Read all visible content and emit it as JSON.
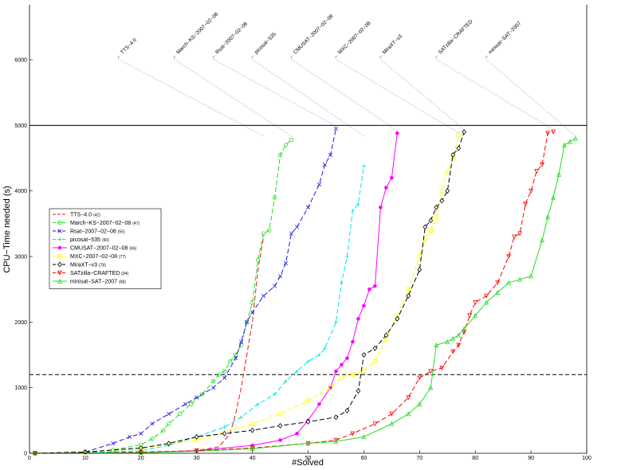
{
  "chart_data": {
    "type": "line",
    "xlabel": "#Solved",
    "ylabel": "CPU−Time needed (s)",
    "xlim": [
      0,
      100
    ],
    "ylim": [
      0,
      6000
    ],
    "xticks": [
      0,
      10,
      20,
      30,
      40,
      50,
      60,
      70,
      80,
      90,
      100
    ],
    "yticks": [
      0,
      1000,
      2000,
      3000,
      4000,
      5000,
      6000
    ],
    "timeout_line": 5000,
    "dashed_reference_line": 1200,
    "legend_position": "left",
    "series": [
      {
        "name": "TTS−4.0",
        "count": "(42)",
        "color": "#e41a1c",
        "dash": "6,3",
        "marker": "none",
        "points": [
          [
            1,
            0
          ],
          [
            10,
            10
          ],
          [
            20,
            20
          ],
          [
            30,
            40
          ],
          [
            34,
            100
          ],
          [
            36,
            300
          ],
          [
            37,
            600
          ],
          [
            38,
            1000
          ],
          [
            39,
            1500
          ],
          [
            40,
            2000
          ],
          [
            41,
            2800
          ],
          [
            42,
            3300
          ]
        ],
        "label_x": 5
      },
      {
        "name": "March−KS−2007−02−08",
        "count": "(47)",
        "color": "#22dd22",
        "dash": "6,3",
        "marker": "circle",
        "points": [
          [
            1,
            0
          ],
          [
            10,
            20
          ],
          [
            15,
            50
          ],
          [
            20,
            130
          ],
          [
            22,
            220
          ],
          [
            24,
            350
          ],
          [
            25,
            450
          ],
          [
            27,
            600
          ],
          [
            29,
            750
          ],
          [
            31,
            900
          ],
          [
            33,
            1100
          ],
          [
            34,
            1200
          ],
          [
            35,
            1250
          ],
          [
            36,
            1400
          ],
          [
            37,
            1500
          ],
          [
            38,
            1650
          ],
          [
            39,
            2000
          ],
          [
            40,
            2300
          ],
          [
            41,
            2950
          ],
          [
            42,
            3350
          ],
          [
            43,
            3400
          ],
          [
            44,
            3900
          ],
          [
            45,
            4550
          ],
          [
            46,
            4700
          ],
          [
            47,
            4780
          ]
        ],
        "label_x": 15
      },
      {
        "name": "Rsat−2007−02−08",
        "count": "(55)",
        "color": "#1a1add",
        "dash": "6,3",
        "marker": "x",
        "points": [
          [
            1,
            0
          ],
          [
            10,
            20
          ],
          [
            15,
            150
          ],
          [
            18,
            250
          ],
          [
            20,
            300
          ],
          [
            22,
            450
          ],
          [
            25,
            600
          ],
          [
            28,
            750
          ],
          [
            30,
            850
          ],
          [
            33,
            1000
          ],
          [
            35,
            1150
          ],
          [
            37,
            1450
          ],
          [
            38,
            1700
          ],
          [
            39,
            2000
          ],
          [
            40,
            2150
          ],
          [
            42,
            2400
          ],
          [
            44,
            2550
          ],
          [
            45,
            2700
          ],
          [
            46,
            2900
          ],
          [
            47,
            3350
          ],
          [
            48,
            3450
          ],
          [
            50,
            3750
          ],
          [
            52,
            4100
          ],
          [
            53,
            4400
          ],
          [
            54,
            4550
          ],
          [
            55,
            4950
          ]
        ],
        "label_x": 22
      },
      {
        "name": "picosat−535",
        "count": "(60)",
        "color": "#00e5e5",
        "dash": "6,3",
        "marker": "plus",
        "points": [
          [
            1,
            0
          ],
          [
            10,
            10
          ],
          [
            20,
            40
          ],
          [
            25,
            120
          ],
          [
            30,
            250
          ],
          [
            35,
            400
          ],
          [
            38,
            550
          ],
          [
            41,
            750
          ],
          [
            44,
            900
          ],
          [
            46,
            1100
          ],
          [
            48,
            1250
          ],
          [
            50,
            1400
          ],
          [
            52,
            1500
          ],
          [
            53,
            1600
          ],
          [
            55,
            2000
          ],
          [
            56,
            2600
          ],
          [
            57,
            3000
          ],
          [
            58,
            3700
          ],
          [
            59,
            3800
          ],
          [
            60,
            4380
          ]
        ],
        "label_x": 29
      },
      {
        "name": "CMUSAT−2007−02−08",
        "count": "(66)",
        "color": "#ff00ff",
        "dash": "none",
        "marker": "dot",
        "points": [
          [
            1,
            0
          ],
          [
            20,
            10
          ],
          [
            30,
            40
          ],
          [
            40,
            120
          ],
          [
            45,
            200
          ],
          [
            48,
            300
          ],
          [
            50,
            500
          ],
          [
            52,
            750
          ],
          [
            54,
            1000
          ],
          [
            55,
            1250
          ],
          [
            56,
            1350
          ],
          [
            57,
            1450
          ],
          [
            58,
            1700
          ],
          [
            59,
            2050
          ],
          [
            60,
            2250
          ],
          [
            61,
            2500
          ],
          [
            62,
            2550
          ],
          [
            63,
            3750
          ],
          [
            64,
            4050
          ],
          [
            65,
            4200
          ],
          [
            66,
            4880
          ]
        ],
        "label_x": 36
      },
      {
        "name": "MXC−2007−02−08",
        "count": "(77)",
        "color": "#ffff00",
        "dash": "6,3",
        "marker": "square",
        "points": [
          [
            1,
            0
          ],
          [
            10,
            20
          ],
          [
            20,
            70
          ],
          [
            30,
            200
          ],
          [
            40,
            450
          ],
          [
            45,
            600
          ],
          [
            50,
            800
          ],
          [
            54,
            1000
          ],
          [
            56,
            1150
          ],
          [
            58,
            1200
          ],
          [
            60,
            1250
          ],
          [
            62,
            1400
          ],
          [
            64,
            1750
          ],
          [
            66,
            2100
          ],
          [
            68,
            2500
          ],
          [
            70,
            3000
          ],
          [
            71,
            3250
          ],
          [
            72,
            3400
          ],
          [
            73,
            3600
          ],
          [
            74,
            4000
          ],
          [
            75,
            4300
          ],
          [
            76,
            4500
          ],
          [
            77,
            4850
          ]
        ],
        "label_x": 44
      },
      {
        "name": "MiraXT−v3",
        "count": "(78)",
        "color": "#000000",
        "dash": "6,3",
        "marker": "diamond",
        "points": [
          [
            1,
            0
          ],
          [
            10,
            20
          ],
          [
            20,
            80
          ],
          [
            25,
            150
          ],
          [
            30,
            250
          ],
          [
            35,
            300
          ],
          [
            40,
            350
          ],
          [
            45,
            420
          ],
          [
            50,
            480
          ],
          [
            55,
            550
          ],
          [
            57,
            650
          ],
          [
            59,
            950
          ],
          [
            60,
            1500
          ],
          [
            62,
            1600
          ],
          [
            64,
            1800
          ],
          [
            66,
            2050
          ],
          [
            68,
            2400
          ],
          [
            70,
            2800
          ],
          [
            71,
            3450
          ],
          [
            72,
            3550
          ],
          [
            73,
            3750
          ],
          [
            74,
            3850
          ],
          [
            75,
            4000
          ],
          [
            76,
            4550
          ],
          [
            77,
            4650
          ],
          [
            78,
            4900
          ]
        ],
        "label_x": 52
      },
      {
        "name": "SATzilla−CRAFTED",
        "count": "(94)",
        "color": "#ff0000",
        "dash": "6,3",
        "marker": "triangle",
        "points": [
          [
            1,
            0
          ],
          [
            20,
            10
          ],
          [
            30,
            40
          ],
          [
            40,
            80
          ],
          [
            50,
            150
          ],
          [
            55,
            200
          ],
          [
            58,
            300
          ],
          [
            62,
            450
          ],
          [
            65,
            600
          ],
          [
            68,
            850
          ],
          [
            70,
            1150
          ],
          [
            72,
            1250
          ],
          [
            74,
            1300
          ],
          [
            76,
            1550
          ],
          [
            77,
            1650
          ],
          [
            78,
            1850
          ],
          [
            79,
            2100
          ],
          [
            80,
            2300
          ],
          [
            82,
            2400
          ],
          [
            84,
            2600
          ],
          [
            86,
            3000
          ],
          [
            87,
            3300
          ],
          [
            88,
            3350
          ],
          [
            89,
            3800
          ],
          [
            90,
            4000
          ],
          [
            91,
            4300
          ],
          [
            92,
            4400
          ],
          [
            93,
            4880
          ],
          [
            94,
            4900
          ]
        ],
        "label_x": 62
      },
      {
        "name": "minisat−SAT−2007",
        "count": "(98)",
        "color": "#22dd22",
        "dash": "none",
        "marker": "triangle-up",
        "points": [
          [
            1,
            0
          ],
          [
            20,
            10
          ],
          [
            30,
            30
          ],
          [
            40,
            70
          ],
          [
            50,
            150
          ],
          [
            55,
            180
          ],
          [
            60,
            250
          ],
          [
            65,
            450
          ],
          [
            68,
            600
          ],
          [
            70,
            750
          ],
          [
            72,
            1000
          ],
          [
            73,
            1650
          ],
          [
            75,
            1700
          ],
          [
            76,
            1750
          ],
          [
            77,
            1800
          ],
          [
            78,
            1900
          ],
          [
            80,
            2100
          ],
          [
            82,
            2300
          ],
          [
            84,
            2450
          ],
          [
            86,
            2600
          ],
          [
            88,
            2650
          ],
          [
            90,
            2700
          ],
          [
            92,
            3250
          ],
          [
            93,
            3600
          ],
          [
            94,
            3900
          ],
          [
            95,
            4250
          ],
          [
            96,
            4700
          ],
          [
            97,
            4750
          ],
          [
            98,
            4800
          ]
        ],
        "label_x": 71
      }
    ]
  }
}
